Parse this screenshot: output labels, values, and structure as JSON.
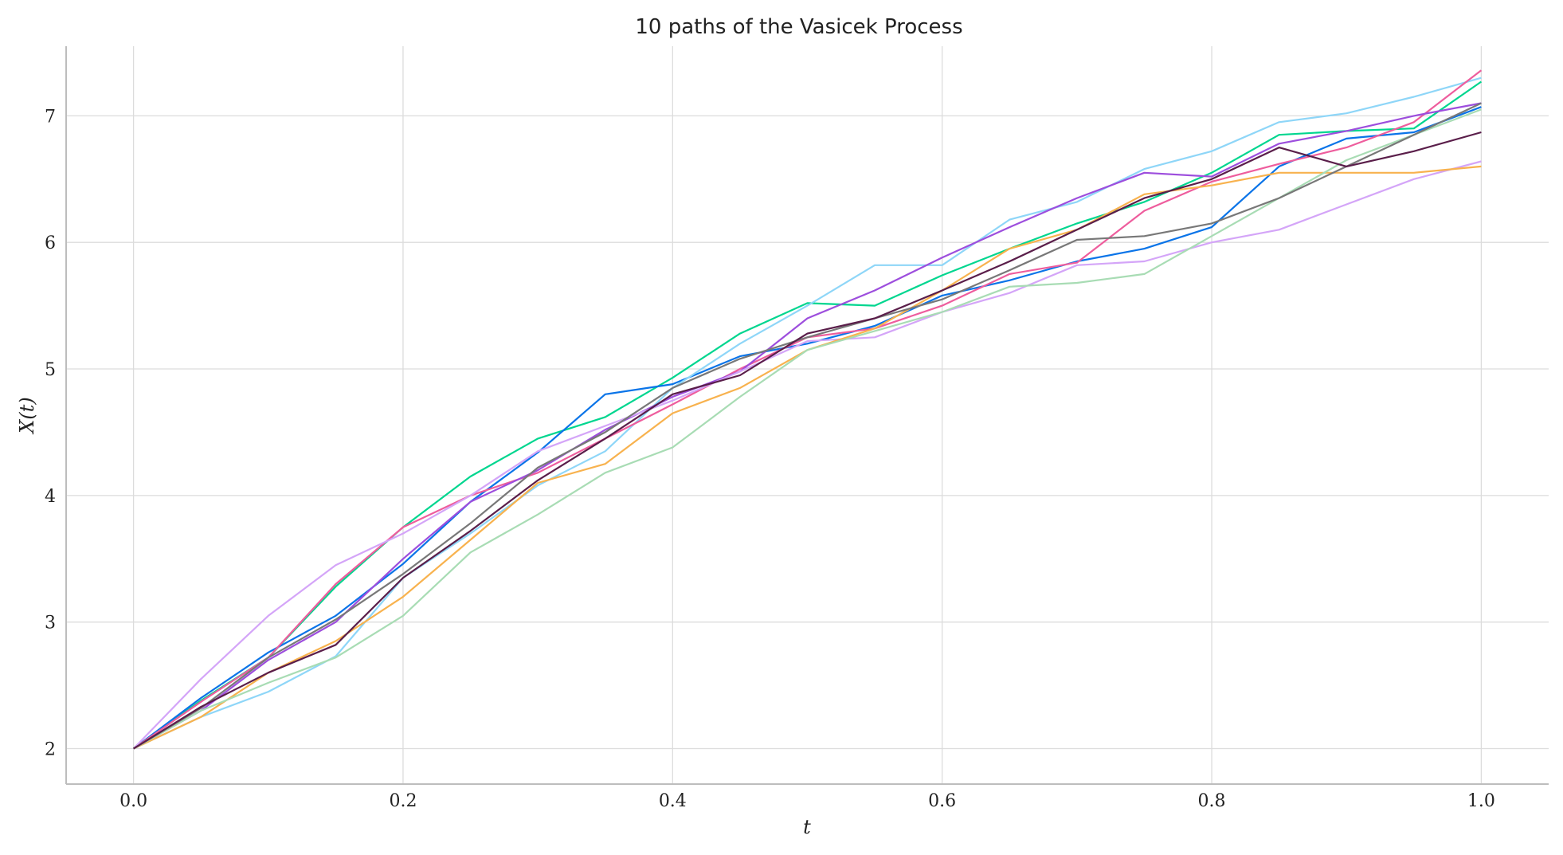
{
  "chart_data": {
    "type": "line",
    "title": "10 paths of the Vasicek Process",
    "xlabel": "t",
    "ylabel": "X(t)",
    "xlim": [
      -0.05,
      1.05
    ],
    "ylim": [
      1.72,
      7.55
    ],
    "xticks": [
      0.0,
      0.2,
      0.4,
      0.6,
      0.8,
      1.0
    ],
    "xtick_labels": [
      "0.0",
      "0.2",
      "0.4",
      "0.6",
      "0.8",
      "1.0"
    ],
    "yticks": [
      2,
      3,
      4,
      5,
      6,
      7
    ],
    "ytick_labels": [
      "2",
      "3",
      "4",
      "5",
      "6",
      "7"
    ],
    "grid": true,
    "legend": "none",
    "x": [
      0.0,
      0.05,
      0.1,
      0.15,
      0.2,
      0.25,
      0.3,
      0.35,
      0.4,
      0.45,
      0.5,
      0.55,
      0.6,
      0.65,
      0.7,
      0.75,
      0.8,
      0.85,
      0.9,
      0.95,
      1.0
    ],
    "series": [
      {
        "color": "#00d68f",
        "values": [
          2.0,
          2.38,
          2.72,
          3.28,
          3.75,
          4.15,
          4.45,
          4.62,
          4.93,
          5.28,
          5.52,
          5.5,
          5.74,
          5.95,
          6.15,
          6.32,
          6.55,
          6.85,
          6.88,
          6.9,
          7.27
        ]
      },
      {
        "color": "#0a74e8",
        "values": [
          2.0,
          2.4,
          2.76,
          3.05,
          3.46,
          3.95,
          4.34,
          4.8,
          4.88,
          5.1,
          5.2,
          5.34,
          5.58,
          5.7,
          5.85,
          5.95,
          6.12,
          6.6,
          6.82,
          6.87,
          7.07
        ]
      },
      {
        "color": "#8ed6f8",
        "values": [
          2.0,
          2.25,
          2.45,
          2.73,
          3.35,
          3.7,
          4.08,
          4.35,
          4.85,
          5.2,
          5.5,
          5.82,
          5.82,
          6.18,
          6.32,
          6.58,
          6.72,
          6.95,
          7.02,
          7.15,
          7.3
        ]
      },
      {
        "color": "#ee5d9d",
        "values": [
          2.0,
          2.37,
          2.72,
          3.3,
          3.75,
          4.0,
          4.18,
          4.45,
          4.72,
          5.0,
          5.25,
          5.32,
          5.5,
          5.75,
          5.84,
          6.25,
          6.48,
          6.62,
          6.75,
          6.95,
          7.36
        ]
      },
      {
        "color": "#9d4edd",
        "values": [
          2.0,
          2.3,
          2.7,
          3.0,
          3.5,
          3.95,
          4.2,
          4.52,
          4.78,
          4.98,
          5.4,
          5.62,
          5.88,
          6.12,
          6.35,
          6.55,
          6.52,
          6.78,
          6.88,
          7.0,
          7.1
        ]
      },
      {
        "color": "#d4a5f8",
        "values": [
          2.0,
          2.55,
          3.05,
          3.45,
          3.7,
          4.0,
          4.35,
          4.55,
          4.75,
          4.98,
          5.22,
          5.25,
          5.45,
          5.6,
          5.82,
          5.85,
          6.0,
          6.1,
          6.3,
          6.5,
          6.64
        ]
      },
      {
        "color": "#f8b24e",
        "values": [
          2.0,
          2.25,
          2.6,
          2.85,
          3.2,
          3.65,
          4.1,
          4.25,
          4.65,
          4.85,
          5.15,
          5.32,
          5.62,
          5.95,
          6.1,
          6.38,
          6.45,
          6.55,
          6.55,
          6.55,
          6.6
        ]
      },
      {
        "color": "#a8dcb4",
        "values": [
          2.0,
          2.3,
          2.52,
          2.72,
          3.05,
          3.55,
          3.85,
          4.18,
          4.38,
          4.78,
          5.15,
          5.3,
          5.45,
          5.65,
          5.68,
          5.75,
          6.05,
          6.35,
          6.65,
          6.85,
          7.05
        ]
      },
      {
        "color": "#787878",
        "values": [
          2.0,
          2.32,
          2.72,
          3.02,
          3.38,
          3.78,
          4.22,
          4.5,
          4.85,
          5.08,
          5.25,
          5.4,
          5.55,
          5.78,
          6.02,
          6.05,
          6.15,
          6.35,
          6.6,
          6.85,
          7.1
        ]
      },
      {
        "color": "#5a1e4a",
        "values": [
          2.0,
          2.33,
          2.6,
          2.82,
          3.35,
          3.72,
          4.12,
          4.45,
          4.8,
          4.95,
          5.28,
          5.4,
          5.62,
          5.85,
          6.1,
          6.35,
          6.5,
          6.75,
          6.6,
          6.72,
          6.87
        ]
      }
    ]
  }
}
